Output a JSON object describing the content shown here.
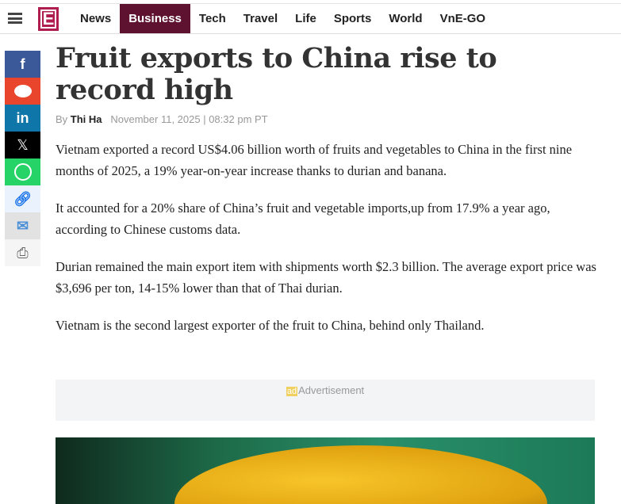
{
  "nav": {
    "items": [
      "News",
      "Business",
      "Tech",
      "Travel",
      "Life",
      "Sports",
      "World",
      "VnE-GO"
    ],
    "active": "Business",
    "logo": "E"
  },
  "social": [
    "facebook",
    "reddit",
    "linkedin",
    "x",
    "whatsapp",
    "copy-link",
    "email",
    "print"
  ],
  "article": {
    "title": "Fruit exports to China rise to record high",
    "by": "By",
    "author": "Thi Ha",
    "date": "November 11, 2025 | 08:32 pm PT",
    "paragraphs": [
      "Vietnam exported a record US$4.06 billion worth of fruits and vegetables to China in the first nine months of 2025, a 19% year-on-year increase thanks to durian and banana.",
      "It accounted for a 20% share of China’s fruit and vegetable imports,up from 17.9% a year ago, according to Chinese customs data.",
      "Durian remained the main export item with shipments worth $2.3 billion. The average export price was $3,696 per ton, 14-15% lower than that of Thai durian.",
      "Vietnam is the second largest exporter of the fruit to China, behind only Thailand."
    ]
  },
  "ad": {
    "badge": "ad",
    "label": "Advertisement"
  },
  "colors": {
    "accent": "#5e1230",
    "logo": "#b01e4f"
  }
}
